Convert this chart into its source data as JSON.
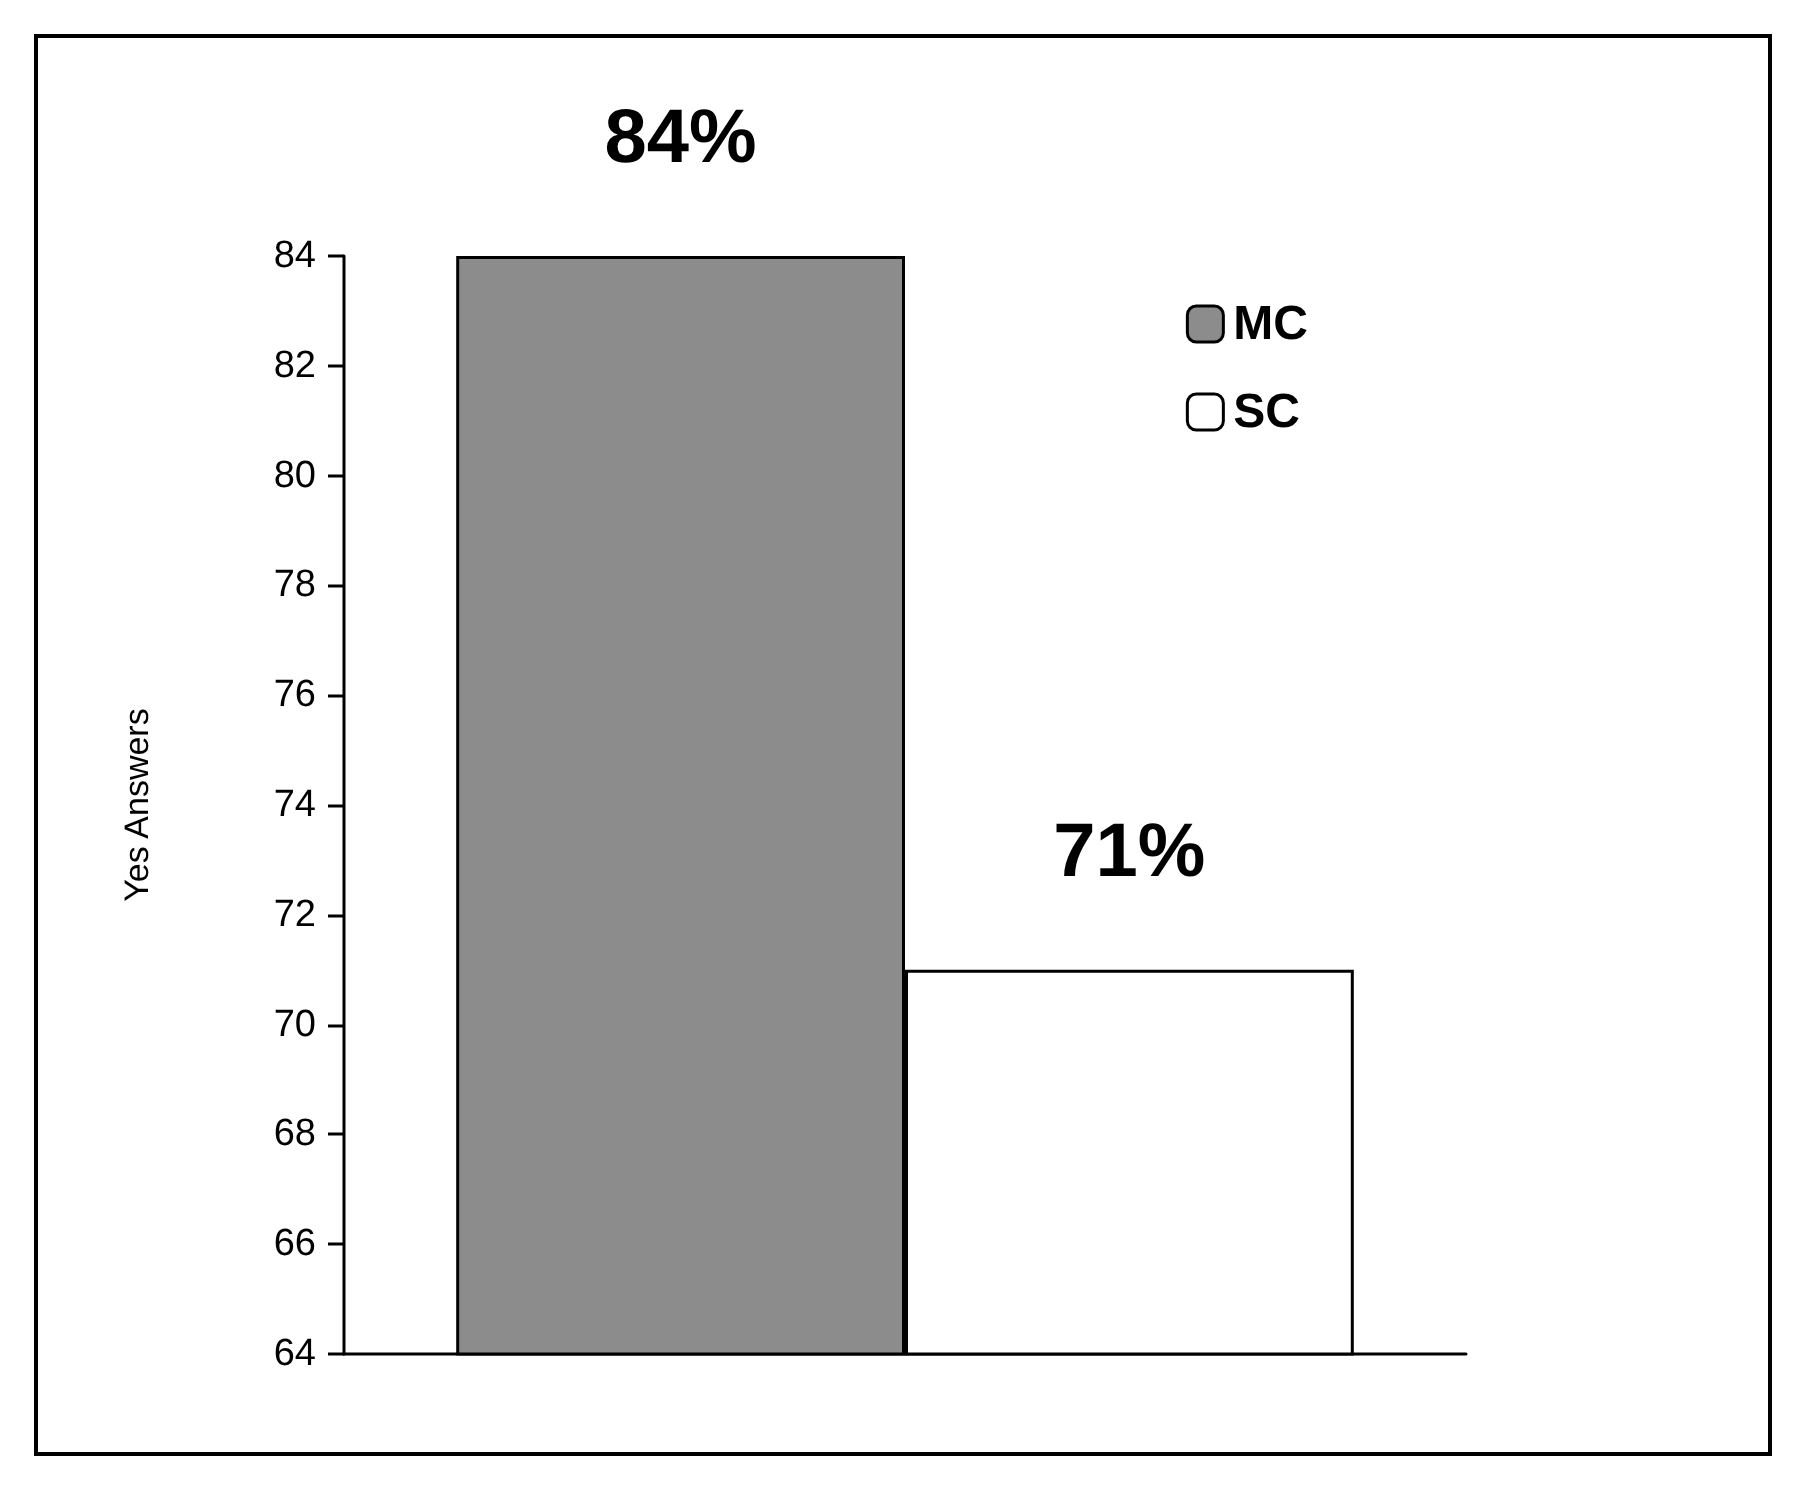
{
  "chart_data": {
    "type": "bar",
    "ylabel": "Yes Answers",
    "categories": [
      null
    ],
    "series": [
      {
        "name": "MC",
        "color": "#8c8c8c",
        "values": [
          84
        ],
        "value_labels": [
          "84%"
        ]
      },
      {
        "name": "SC",
        "color": "#ffffff",
        "values": [
          71
        ],
        "value_labels": [
          "71%"
        ]
      }
    ],
    "ylim": [
      64,
      84
    ],
    "yticks": [
      64,
      66,
      68,
      70,
      72,
      74,
      76,
      78,
      80,
      82,
      84
    ],
    "grid": false,
    "legend": "top right"
  }
}
